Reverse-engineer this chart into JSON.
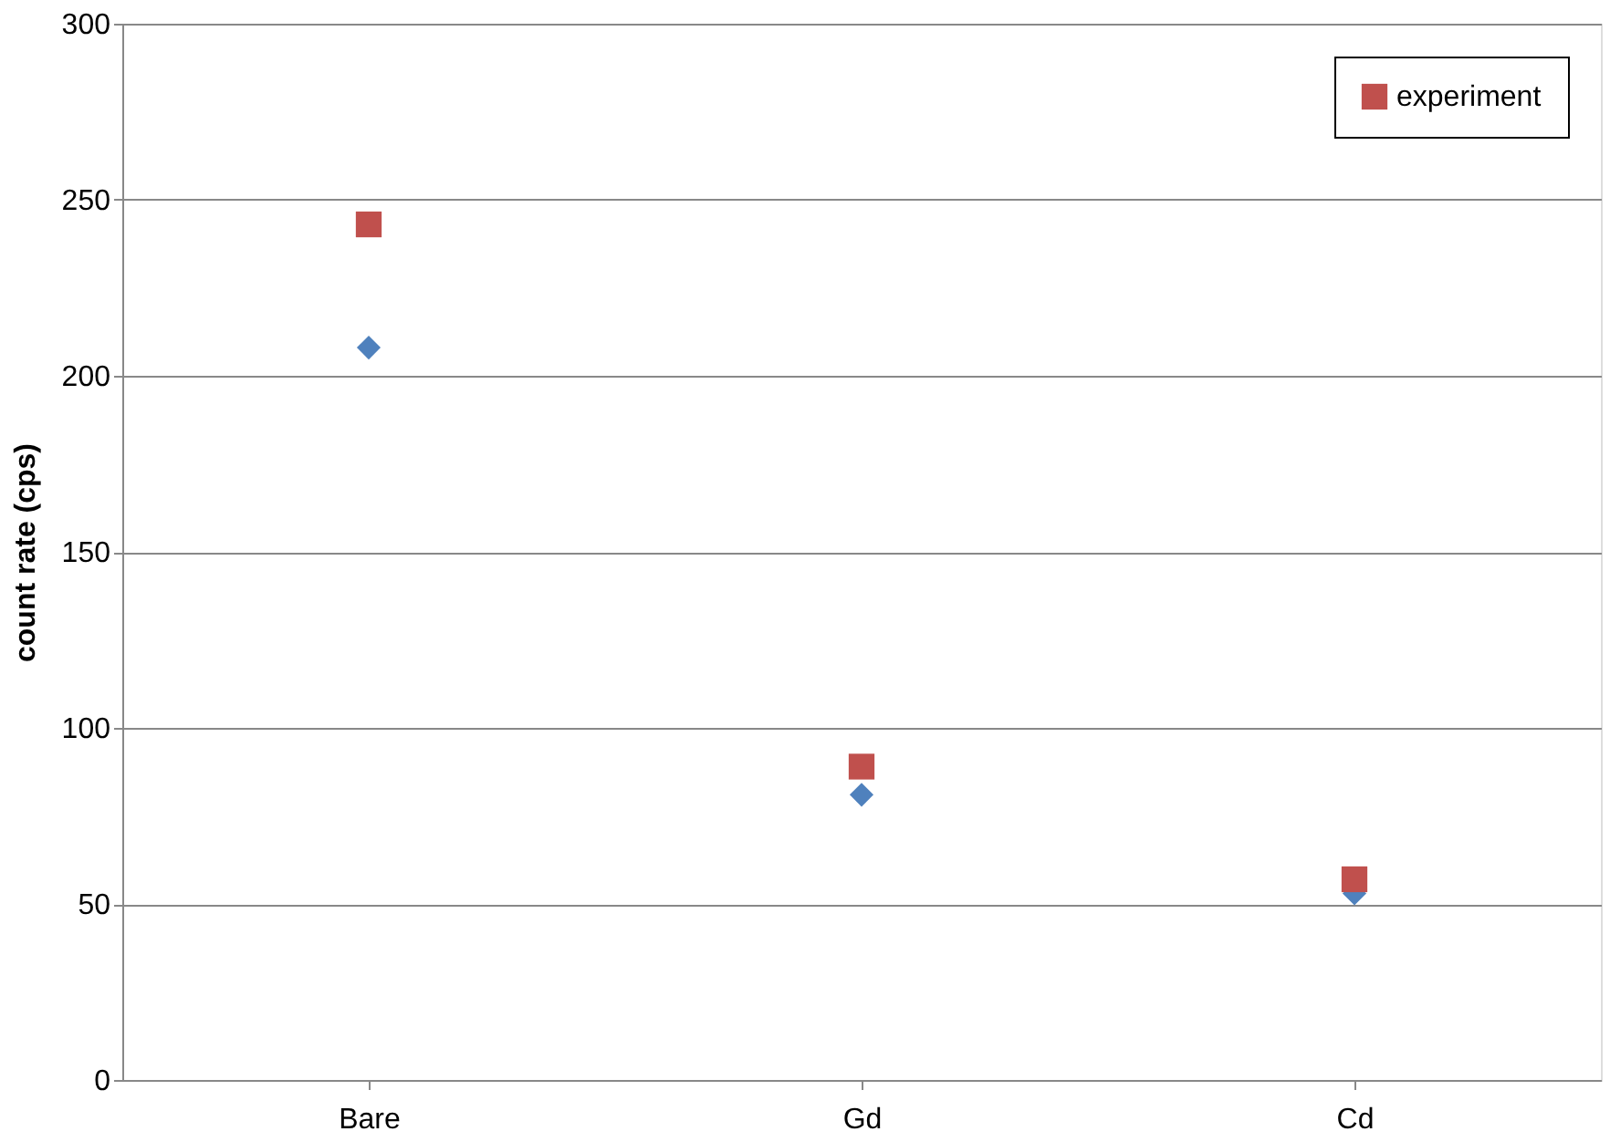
{
  "chart_data": {
    "type": "scatter",
    "ylabel": "count rate (cps)",
    "categories": [
      "Bare",
      "Gd",
      "Cd"
    ],
    "series": [
      {
        "color": "#4f81bd",
        "marker": "diamond",
        "values": [
          208,
          81,
          53
        ]
      },
      {
        "name": "experiment",
        "color": "#c0504d",
        "marker": "square",
        "values": [
          243,
          89,
          57
        ]
      }
    ],
    "ylim": [
      0,
      300
    ],
    "yticks": [
      0,
      50,
      100,
      150,
      200,
      250,
      300
    ],
    "grid": "y",
    "legend": "top right"
  }
}
